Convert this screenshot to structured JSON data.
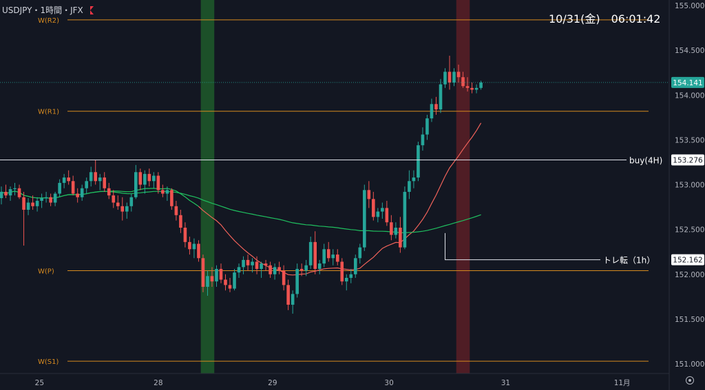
{
  "header": {
    "symbol": "USDJPY・1時間・JFX"
  },
  "clock": "10/31(金)　06:01:42",
  "colors": {
    "background": "#131722",
    "up": "#26a69a",
    "down": "#ef5350",
    "pivot": "#d68a1f",
    "ma_fast": "#f0625a",
    "ma_mid": "#22c55e",
    "ma_slow": "#1fbf5f",
    "highlight_green": "#1f5a2a",
    "highlight_red": "#5a1f26"
  },
  "axis": {
    "y_ticks": [
      "155.000",
      "154.500",
      "154.000",
      "153.500",
      "153.000",
      "152.500",
      "152.000",
      "151.500",
      "151.000"
    ],
    "x_ticks": [
      "25",
      "28",
      "29",
      "30",
      "31",
      "11月"
    ]
  },
  "chart_data": {
    "type": "candlestick",
    "symbol": "USDJPY",
    "timeframe": "1時間",
    "ylim": [
      150.95,
      155.05
    ],
    "levels": [
      {
        "label": "W(R2)",
        "value": 154.84
      },
      {
        "label": "W(R1)",
        "value": 153.82
      },
      {
        "label": "W(P)",
        "value": 152.04
      },
      {
        "label": "W(S1)",
        "value": 151.03
      }
    ],
    "annotations": [
      {
        "label": "buy(4H)",
        "value": "153.276",
        "price": 153.276
      },
      {
        "label": "トレ転（1h）",
        "value": "152.162",
        "price": 152.162
      }
    ],
    "current_price": "154.141",
    "candles": [
      [
        152.85,
        152.98,
        152.78,
        152.92
      ],
      [
        152.92,
        153.0,
        152.85,
        152.88
      ],
      [
        152.88,
        152.98,
        152.82,
        152.95
      ],
      [
        152.95,
        153.02,
        152.88,
        152.96
      ],
      [
        152.96,
        153.0,
        152.84,
        152.86
      ],
      [
        152.86,
        152.92,
        152.32,
        152.72
      ],
      [
        152.72,
        152.85,
        152.66,
        152.8
      ],
      [
        152.8,
        152.88,
        152.72,
        152.76
      ],
      [
        152.76,
        152.86,
        152.7,
        152.82
      ],
      [
        152.82,
        152.9,
        152.74,
        152.85
      ],
      [
        152.85,
        152.92,
        152.8,
        152.86
      ],
      [
        152.86,
        152.9,
        152.76,
        152.8
      ],
      [
        152.8,
        152.92,
        152.76,
        152.9
      ],
      [
        152.9,
        153.06,
        152.86,
        153.02
      ],
      [
        153.02,
        153.12,
        152.96,
        153.08
      ],
      [
        153.08,
        153.16,
        153.0,
        153.04
      ],
      [
        153.04,
        153.1,
        152.88,
        152.9
      ],
      [
        152.9,
        152.96,
        152.8,
        152.86
      ],
      [
        152.86,
        153.0,
        152.82,
        152.96
      ],
      [
        152.96,
        153.08,
        152.9,
        153.04
      ],
      [
        153.04,
        153.2,
        152.98,
        153.14
      ],
      [
        153.14,
        153.28,
        153.0,
        153.04
      ],
      [
        153.04,
        153.12,
        152.94,
        153.08
      ],
      [
        153.08,
        153.14,
        152.92,
        152.96
      ],
      [
        152.96,
        153.02,
        152.84,
        152.88
      ],
      [
        152.88,
        152.94,
        152.74,
        152.8
      ],
      [
        152.8,
        152.88,
        152.72,
        152.76
      ],
      [
        152.76,
        152.86,
        152.6,
        152.7
      ],
      [
        152.7,
        152.8,
        152.62,
        152.76
      ],
      [
        152.76,
        152.9,
        152.7,
        152.86
      ],
      [
        152.86,
        153.22,
        152.84,
        153.14
      ],
      [
        153.14,
        153.18,
        152.94,
        153.0
      ],
      [
        153.0,
        153.16,
        152.9,
        153.12
      ],
      [
        153.12,
        153.18,
        152.98,
        153.04
      ],
      [
        153.04,
        153.14,
        152.96,
        153.1
      ],
      [
        153.1,
        153.14,
        152.9,
        152.94
      ],
      [
        152.94,
        153.0,
        152.86,
        152.9
      ],
      [
        152.9,
        152.98,
        152.82,
        152.94
      ],
      [
        152.94,
        152.96,
        152.72,
        152.76
      ],
      [
        152.76,
        152.82,
        152.6,
        152.66
      ],
      [
        152.66,
        152.72,
        152.46,
        152.52
      ],
      [
        152.52,
        152.58,
        152.3,
        152.36
      ],
      [
        152.36,
        152.42,
        152.22,
        152.28
      ],
      [
        152.28,
        152.4,
        152.18,
        152.34
      ],
      [
        152.34,
        152.38,
        152.14,
        152.18
      ],
      [
        152.18,
        152.22,
        151.8,
        151.86
      ],
      [
        151.86,
        152.04,
        151.76,
        151.98
      ],
      [
        151.98,
        152.08,
        151.86,
        151.92
      ],
      [
        151.92,
        152.1,
        151.86,
        152.06
      ],
      [
        152.06,
        152.12,
        151.9,
        151.94
      ],
      [
        151.94,
        152.0,
        151.82,
        151.88
      ],
      [
        151.88,
        151.96,
        151.8,
        151.84
      ],
      [
        151.84,
        152.06,
        151.82,
        152.02
      ],
      [
        152.02,
        152.12,
        151.96,
        152.08
      ],
      [
        152.08,
        152.2,
        152.0,
        152.16
      ],
      [
        152.16,
        152.22,
        152.04,
        152.1
      ],
      [
        152.1,
        152.18,
        152.02,
        152.14
      ],
      [
        152.14,
        152.2,
        152.0,
        152.06
      ],
      [
        152.06,
        152.14,
        151.96,
        152.12
      ],
      [
        152.12,
        152.16,
        152.04,
        152.1
      ],
      [
        152.1,
        152.14,
        151.96,
        152.0
      ],
      [
        152.0,
        152.12,
        151.94,
        152.08
      ],
      [
        152.08,
        152.14,
        152.0,
        152.04
      ],
      [
        152.04,
        152.1,
        151.82,
        151.88
      ],
      [
        151.88,
        151.94,
        151.6,
        151.66
      ],
      [
        151.66,
        151.82,
        151.56,
        151.78
      ],
      [
        151.78,
        152.12,
        151.74,
        152.06
      ],
      [
        152.06,
        152.12,
        151.98,
        152.04
      ],
      [
        152.04,
        152.16,
        151.98,
        152.1
      ],
      [
        152.1,
        152.42,
        152.06,
        152.36
      ],
      [
        152.36,
        152.48,
        152.0,
        152.06
      ],
      [
        152.06,
        152.16,
        152.0,
        152.12
      ],
      [
        152.12,
        152.34,
        152.08,
        152.28
      ],
      [
        152.28,
        152.36,
        152.14,
        152.18
      ],
      [
        152.18,
        152.28,
        152.1,
        152.22
      ],
      [
        152.22,
        152.28,
        152.1,
        152.14
      ],
      [
        152.14,
        152.18,
        151.88,
        151.92
      ],
      [
        151.92,
        152.0,
        151.82,
        151.96
      ],
      [
        151.96,
        152.06,
        151.9,
        152.0
      ],
      [
        152.0,
        152.22,
        151.96,
        152.18
      ],
      [
        152.18,
        152.34,
        152.12,
        152.3
      ],
      [
        152.3,
        153.0,
        152.26,
        152.94
      ],
      [
        152.94,
        153.04,
        152.74,
        152.84
      ],
      [
        152.84,
        152.92,
        152.6,
        152.64
      ],
      [
        152.64,
        152.74,
        152.58,
        152.7
      ],
      [
        152.7,
        152.8,
        152.62,
        152.74
      ],
      [
        152.74,
        152.82,
        152.54,
        152.58
      ],
      [
        152.58,
        152.66,
        152.38,
        152.44
      ],
      [
        152.44,
        152.58,
        152.4,
        152.52
      ],
      [
        152.52,
        152.64,
        152.24,
        152.3
      ],
      [
        152.3,
        152.98,
        152.28,
        152.92
      ],
      [
        152.92,
        153.16,
        152.84,
        153.04
      ],
      [
        153.04,
        153.16,
        152.96,
        153.08
      ],
      [
        153.08,
        153.48,
        153.04,
        153.44
      ],
      [
        153.44,
        153.64,
        153.38,
        153.56
      ],
      [
        153.56,
        153.78,
        153.5,
        153.74
      ],
      [
        153.74,
        153.96,
        153.7,
        153.9
      ],
      [
        153.9,
        153.98,
        153.78,
        153.84
      ],
      [
        153.84,
        154.18,
        153.8,
        154.12
      ],
      [
        154.12,
        154.3,
        154.08,
        154.26
      ],
      [
        154.26,
        154.44,
        154.06,
        154.14
      ],
      [
        154.14,
        154.3,
        154.1,
        154.26
      ],
      [
        154.26,
        154.34,
        154.14,
        154.2
      ],
      [
        154.2,
        154.26,
        154.08,
        154.1
      ],
      [
        154.1,
        154.2,
        154.04,
        154.08
      ],
      [
        154.08,
        154.14,
        154.02,
        154.06
      ],
      [
        154.06,
        154.12,
        154.02,
        154.08
      ],
      [
        154.08,
        154.16,
        154.06,
        154.14
      ]
    ],
    "highlight_bands": [
      {
        "color": "green",
        "from_index": 45,
        "to_index": 47
      },
      {
        "color": "red",
        "from_index": 102,
        "to_index": 104
      }
    ]
  }
}
